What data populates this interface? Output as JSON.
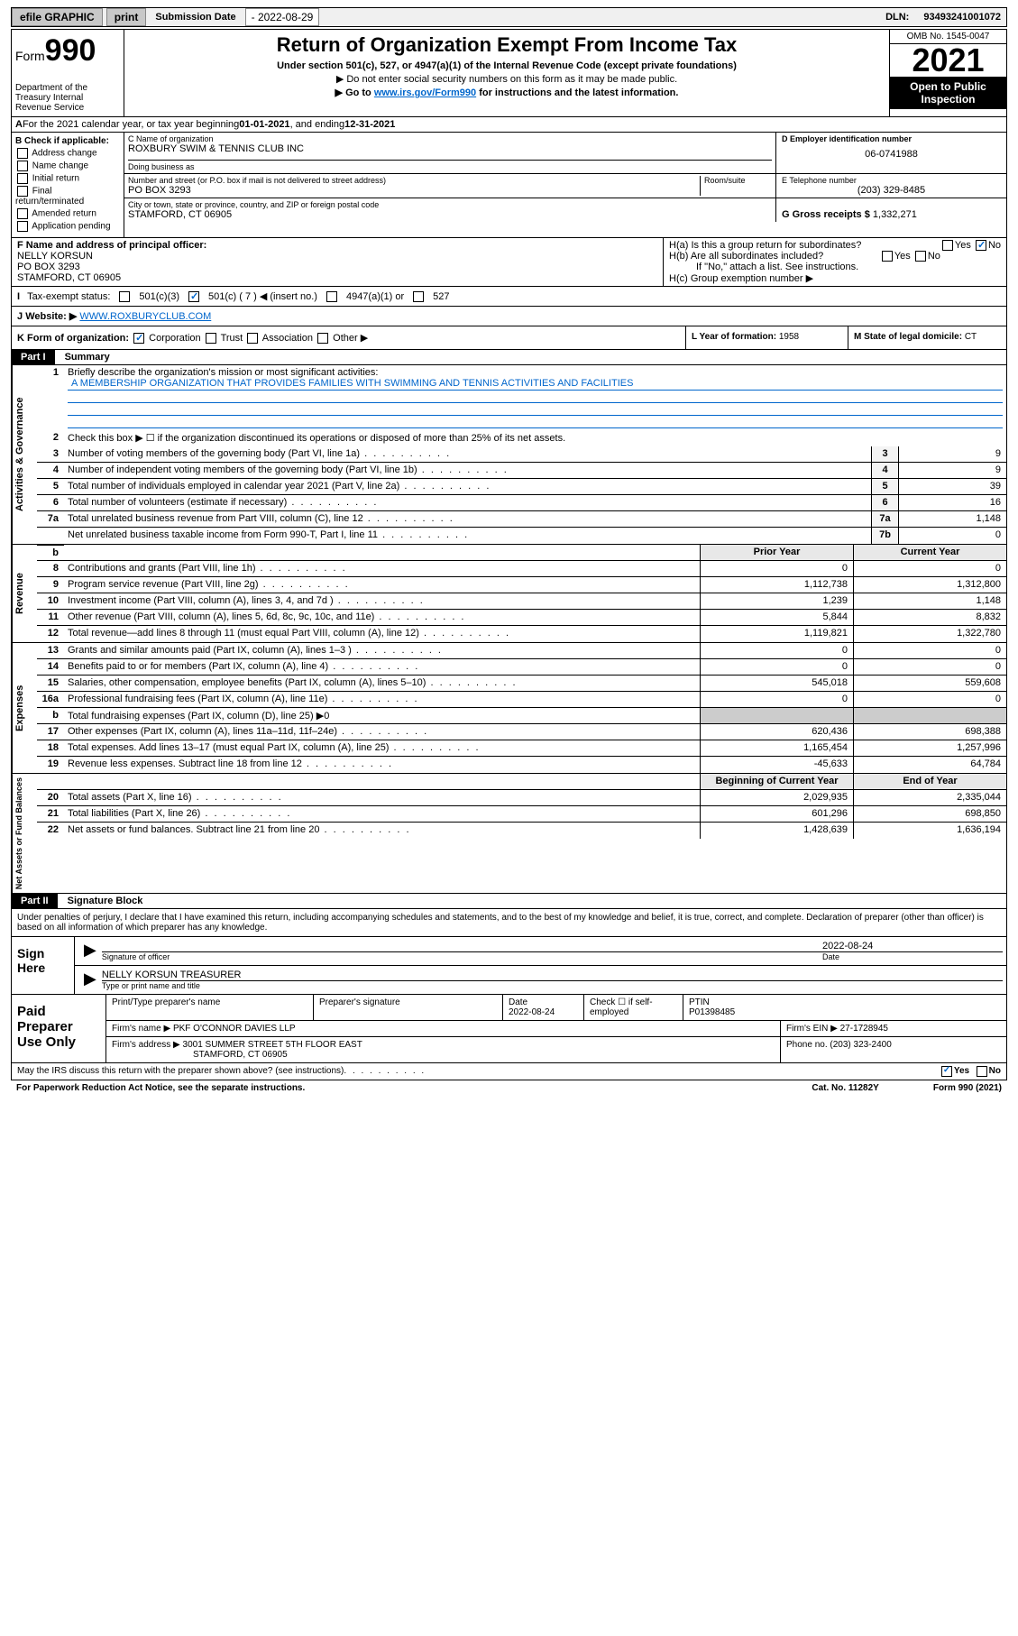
{
  "topbar": {
    "efile": "efile GRAPHIC",
    "print": "print",
    "sub_label": "Submission Date ",
    "sub_date": "- 2022-08-29",
    "dln_label": "DLN:",
    "dln": "93493241001072"
  },
  "header": {
    "form_prefix": "Form",
    "form_num": "990",
    "title": "Return of Organization Exempt From Income Tax",
    "sub1": "Under section 501(c), 527, or 4947(a)(1) of the Internal Revenue Code (except private foundations)",
    "note1": "▶ Do not enter social security numbers on this form as it may be made public.",
    "note2_pre": "▶ Go to ",
    "note2_link": "www.irs.gov/Form990",
    "note2_post": " for instructions and the latest information.",
    "omb": "OMB No. 1545-0047",
    "year": "2021",
    "inspect": "Open to Public Inspection",
    "dept": "Department of the Treasury Internal Revenue Service"
  },
  "rowA": {
    "label": "A",
    "text": "For the 2021 calendar year, or tax year beginning ",
    "begin": "01-01-2021",
    "mid": " , and ending ",
    "end": "12-31-2021"
  },
  "colB": {
    "label": "B Check if applicable:",
    "opts": [
      "Address change",
      "Name change",
      "Initial return",
      "Final return/terminated",
      "Amended return",
      "Application pending"
    ]
  },
  "C": {
    "name_label": "C Name of organization",
    "name": "ROXBURY SWIM & TENNIS CLUB INC",
    "dba_label": "Doing business as",
    "dba": "",
    "street_label": "Number and street (or P.O. box if mail is not delivered to street address)",
    "room_label": "Room/suite",
    "street": "PO BOX 3293",
    "city_label": "City or town, state or province, country, and ZIP or foreign postal code",
    "city": "STAMFORD, CT  06905"
  },
  "D": {
    "ein_label": "D Employer identification number",
    "ein": "06-0741988",
    "phone_label": "E Telephone number",
    "phone": "(203) 329-8485",
    "gross_label": "G Gross receipts $",
    "gross": "1,332,271"
  },
  "F": {
    "label": "F Name and address of principal officer:",
    "name": "NELLY KORSUN",
    "street": "PO BOX 3293",
    "city": "STAMFORD, CT  06905"
  },
  "H": {
    "a": "H(a)  Is this a group return for subordinates?",
    "b": "H(b)  Are all subordinates included?",
    "b_note": "If \"No,\" attach a list. See instructions.",
    "c": "H(c)  Group exemption number ▶",
    "yes": "Yes",
    "no": "No"
  },
  "I": {
    "label": "Tax-exempt status:",
    "o1": "501(c)(3)",
    "o2": "501(c) ( 7 ) ◀ (insert no.)",
    "o3": "4947(a)(1) or",
    "o4": "527"
  },
  "J": {
    "label": "J",
    "text": "Website: ▶",
    "url": "WWW.ROXBURYCLUB.COM"
  },
  "K": {
    "label": "K Form of organization:",
    "opts": [
      "Corporation",
      "Trust",
      "Association",
      "Other ▶"
    ]
  },
  "L": {
    "label": "L Year of formation:",
    "val": "1958"
  },
  "M": {
    "label": "M State of legal domicile:",
    "val": "CT"
  },
  "partI": {
    "num": "Part I",
    "title": "Summary"
  },
  "s1": {
    "num": "1",
    "desc": "Briefly describe the organization's mission or most significant activities:",
    "mission": "A MEMBERSHIP ORGANIZATION THAT PROVIDES FAMILIES WITH SWIMMING AND TENNIS ACTIVITIES AND FACILITIES"
  },
  "s2": {
    "num": "2",
    "desc": "Check this box ▶ ☐  if the organization discontinued its operations or disposed of more than 25% of its net assets."
  },
  "lines_ag": [
    {
      "n": "3",
      "d": "Number of voting members of the governing body (Part VI, line 1a)",
      "b": "3",
      "v": "9"
    },
    {
      "n": "4",
      "d": "Number of independent voting members of the governing body (Part VI, line 1b)",
      "b": "4",
      "v": "9"
    },
    {
      "n": "5",
      "d": "Total number of individuals employed in calendar year 2021 (Part V, line 2a)",
      "b": "5",
      "v": "39"
    },
    {
      "n": "6",
      "d": "Total number of volunteers (estimate if necessary)",
      "b": "6",
      "v": "16"
    },
    {
      "n": "7a",
      "d": "Total unrelated business revenue from Part VIII, column (C), line 12",
      "b": "7a",
      "v": "1,148"
    },
    {
      "n": "",
      "d": "Net unrelated business taxable income from Form 990-T, Part I, line 11",
      "b": "7b",
      "v": "0"
    }
  ],
  "col_hdr": {
    "prior": "Prior Year",
    "current": "Current Year",
    "boy": "Beginning of Current Year",
    "eoy": "End of Year"
  },
  "lines_rev": [
    {
      "n": "8",
      "d": "Contributions and grants (Part VIII, line 1h)",
      "p": "0",
      "c": "0"
    },
    {
      "n": "9",
      "d": "Program service revenue (Part VIII, line 2g)",
      "p": "1,112,738",
      "c": "1,312,800"
    },
    {
      "n": "10",
      "d": "Investment income (Part VIII, column (A), lines 3, 4, and 7d )",
      "p": "1,239",
      "c": "1,148"
    },
    {
      "n": "11",
      "d": "Other revenue (Part VIII, column (A), lines 5, 6d, 8c, 9c, 10c, and 11e)",
      "p": "5,844",
      "c": "8,832"
    },
    {
      "n": "12",
      "d": "Total revenue—add lines 8 through 11 (must equal Part VIII, column (A), line 12)",
      "p": "1,119,821",
      "c": "1,322,780"
    }
  ],
  "lines_exp": [
    {
      "n": "13",
      "d": "Grants and similar amounts paid (Part IX, column (A), lines 1–3 )",
      "p": "0",
      "c": "0"
    },
    {
      "n": "14",
      "d": "Benefits paid to or for members (Part IX, column (A), line 4)",
      "p": "0",
      "c": "0"
    },
    {
      "n": "15",
      "d": "Salaries, other compensation, employee benefits (Part IX, column (A), lines 5–10)",
      "p": "545,018",
      "c": "559,608"
    },
    {
      "n": "16a",
      "d": "Professional fundraising fees (Part IX, column (A), line 11e)",
      "p": "0",
      "c": "0"
    },
    {
      "n": "b",
      "d": "Total fundraising expenses (Part IX, column (D), line 25) ▶0",
      "p": "",
      "c": "",
      "noval": true
    },
    {
      "n": "17",
      "d": "Other expenses (Part IX, column (A), lines 11a–11d, 11f–24e)",
      "p": "620,436",
      "c": "698,388"
    },
    {
      "n": "18",
      "d": "Total expenses. Add lines 13–17 (must equal Part IX, column (A), line 25)",
      "p": "1,165,454",
      "c": "1,257,996"
    },
    {
      "n": "19",
      "d": "Revenue less expenses. Subtract line 18 from line 12",
      "p": "-45,633",
      "c": "64,784"
    }
  ],
  "lines_na": [
    {
      "n": "20",
      "d": "Total assets (Part X, line 16)",
      "p": "2,029,935",
      "c": "2,335,044"
    },
    {
      "n": "21",
      "d": "Total liabilities (Part X, line 26)",
      "p": "601,296",
      "c": "698,850"
    },
    {
      "n": "22",
      "d": "Net assets or fund balances. Subtract line 21 from line 20",
      "p": "1,428,639",
      "c": "1,636,194"
    }
  ],
  "side": {
    "ag": "Activities & Governance",
    "rev": "Revenue",
    "exp": "Expenses",
    "na": "Net Assets or Fund Balances"
  },
  "partII": {
    "num": "Part II",
    "title": "Signature Block"
  },
  "sig": {
    "perjury": "Under penalties of perjury, I declare that I have examined this return, including accompanying schedules and statements, and to the best of my knowledge and belief, it is true, correct, and complete. Declaration of preparer (other than officer) is based on all information of which preparer has any knowledge.",
    "here": "Sign Here",
    "sig_of": "Signature of officer",
    "date": "Date",
    "date_val": "2022-08-24",
    "name": "NELLY KORSUN  TREASURER",
    "name_label": "Type or print name and title"
  },
  "prep": {
    "title": "Paid Preparer Use Only",
    "h1": "Print/Type preparer's name",
    "h2": "Preparer's signature",
    "h3": "Date",
    "date": "2022-08-24",
    "h4": "Check ☐ if self-employed",
    "h5": "PTIN",
    "ptin": "P01398485",
    "firm_label": "Firm's name     ▶",
    "firm": "PKF O'CONNOR DAVIES LLP",
    "ein_label": "Firm's EIN ▶",
    "ein": "27-1728945",
    "addr_label": "Firm's address ▶",
    "addr1": "3001 SUMMER STREET 5TH FLOOR EAST",
    "addr2": "STAMFORD, CT  06905",
    "phone_label": "Phone no.",
    "phone": "(203) 323-2400"
  },
  "footer": {
    "q": "May the IRS discuss this return with the preparer shown above? (see instructions)",
    "yes": "Yes",
    "no": "No",
    "pra": "For Paperwork Reduction Act Notice, see the separate instructions.",
    "cat": "Cat. No. 11282Y",
    "form": "Form 990 (2021)"
  }
}
